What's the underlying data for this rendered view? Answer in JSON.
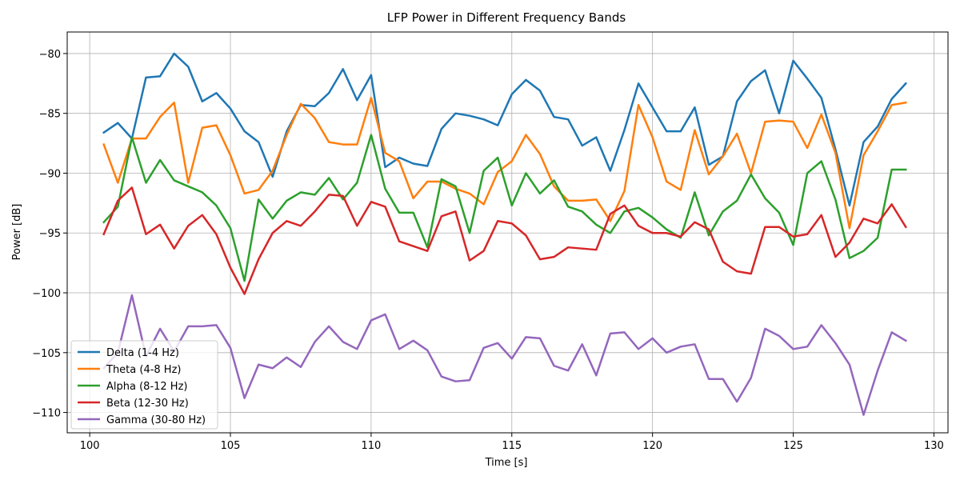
{
  "chart_data": {
    "type": "line",
    "title": "LFP Power in Different Frequency Bands",
    "xlabel": "Time [s]",
    "ylabel": "Power [dB]",
    "xlim": [
      99.2,
      130.5
    ],
    "ylim": [
      -111.7,
      -78.2
    ],
    "xticks": [
      100,
      105,
      110,
      115,
      120,
      125,
      130
    ],
    "yticks": [
      -110,
      -105,
      -100,
      -95,
      -90,
      -85,
      -80
    ],
    "xtick_labels": [
      "100",
      "105",
      "110",
      "115",
      "120",
      "125",
      "130"
    ],
    "ytick_labels": [
      "−110",
      "−105",
      "−100",
      "−95",
      "−90",
      "−85",
      "−80"
    ],
    "grid": true,
    "legend_position": "lower-left",
    "x": [
      100.5,
      101,
      101.5,
      102,
      102.5,
      103,
      103.5,
      104,
      104.5,
      105,
      105.5,
      106,
      106.5,
      107,
      107.5,
      108,
      108.5,
      109,
      109.5,
      110,
      110.5,
      111,
      111.5,
      112,
      112.5,
      113,
      113.5,
      114,
      114.5,
      115,
      115.5,
      116,
      116.5,
      117,
      117.5,
      118,
      118.5,
      119,
      119.5,
      120,
      120.5,
      121,
      121.5,
      122,
      122.5,
      123,
      123.5,
      124,
      124.5,
      125,
      125.5,
      126,
      126.5,
      127,
      127.5,
      128,
      128.5,
      129
    ],
    "series": [
      {
        "name": "Delta (1-4 Hz)",
        "color": "#1f77b4",
        "values": [
          -86.6,
          -85.8,
          -87.1,
          -82.0,
          -81.9,
          -80.0,
          -81.1,
          -84.0,
          -83.3,
          -84.6,
          -86.5,
          -87.4,
          -90.3,
          -86.5,
          -84.3,
          -84.4,
          -83.3,
          -81.3,
          -83.9,
          -81.8,
          -89.5,
          -88.7,
          -89.2,
          -89.4,
          -86.3,
          -85.0,
          -85.2,
          -85.5,
          -86.0,
          -83.4,
          -82.2,
          -83.1,
          -85.3,
          -85.5,
          -87.7,
          -87.0,
          -89.8,
          -86.4,
          -82.5,
          -84.5,
          -86.5,
          -86.5,
          -84.5,
          -89.3,
          -88.6,
          -84.0,
          -82.3,
          -81.4,
          -85.0,
          -80.6,
          -82.1,
          -83.7,
          -88.0,
          -92.7,
          -87.4,
          -86.1,
          -83.8,
          -82.5
        ]
      },
      {
        "name": "Theta (4-8 Hz)",
        "color": "#ff7f0e",
        "values": [
          -87.6,
          -90.8,
          -87.1,
          -87.1,
          -85.3,
          -84.1,
          -90.8,
          -86.2,
          -86.0,
          -88.5,
          -91.7,
          -91.4,
          -89.8,
          -86.8,
          -84.2,
          -85.4,
          -87.4,
          -87.6,
          -87.6,
          -83.7,
          -88.3,
          -89.0,
          -92.1,
          -90.7,
          -90.7,
          -91.3,
          -91.7,
          -92.6,
          -89.9,
          -89.0,
          -86.8,
          -88.4,
          -91.1,
          -92.3,
          -92.3,
          -92.2,
          -94.0,
          -91.5,
          -84.3,
          -87.0,
          -90.7,
          -91.4,
          -86.4,
          -90.1,
          -88.6,
          -86.7,
          -90.0,
          -85.7,
          -85.6,
          -85.7,
          -87.9,
          -85.1,
          -88.3,
          -94.6,
          -88.5,
          -86.5,
          -84.3,
          -84.1
        ]
      },
      {
        "name": "Alpha (8-12 Hz)",
        "color": "#2ca02c",
        "values": [
          -94.1,
          -92.8,
          -87.0,
          -90.8,
          -88.9,
          -90.6,
          -91.1,
          -91.6,
          -92.7,
          -94.6,
          -99.0,
          -92.2,
          -93.8,
          -92.3,
          -91.6,
          -91.8,
          -90.4,
          -92.2,
          -90.8,
          -86.8,
          -91.3,
          -93.3,
          -93.3,
          -96.2,
          -90.5,
          -91.1,
          -95.0,
          -89.8,
          -88.7,
          -92.7,
          -90.0,
          -91.7,
          -90.6,
          -92.8,
          -93.2,
          -94.3,
          -95.0,
          -93.2,
          -92.9,
          -93.7,
          -94.7,
          -95.4,
          -91.6,
          -95.2,
          -93.2,
          -92.3,
          -90.1,
          -92.1,
          -93.3,
          -96.0,
          -90.0,
          -89.0,
          -92.2,
          -97.1,
          -96.5,
          -95.4,
          -89.7,
          -89.7
        ]
      },
      {
        "name": "Beta (12-30 Hz)",
        "color": "#d62728",
        "values": [
          -95.1,
          -92.3,
          -91.2,
          -95.1,
          -94.3,
          -96.3,
          -94.4,
          -93.5,
          -95.1,
          -97.9,
          -100.1,
          -97.2,
          -95.0,
          -94.0,
          -94.4,
          -93.2,
          -91.8,
          -91.9,
          -94.4,
          -92.4,
          -92.8,
          -95.7,
          -96.1,
          -96.5,
          -93.6,
          -93.2,
          -97.3,
          -96.5,
          -94.0,
          -94.2,
          -95.2,
          -97.2,
          -97.0,
          -96.2,
          -96.3,
          -96.4,
          -93.4,
          -92.7,
          -94.4,
          -95.0,
          -95.0,
          -95.3,
          -94.1,
          -94.7,
          -97.4,
          -98.2,
          -98.4,
          -94.5,
          -94.5,
          -95.3,
          -95.1,
          -93.5,
          -97.0,
          -95.8,
          -93.8,
          -94.2,
          -92.6,
          -94.5
        ]
      },
      {
        "name": "Gamma (30-80 Hz)",
        "color": "#9467bd",
        "values": [
          -106.3,
          -105.0,
          -100.2,
          -105.3,
          -103.0,
          -104.9,
          -102.8,
          -102.8,
          -102.7,
          -104.6,
          -108.8,
          -106.0,
          -106.3,
          -105.4,
          -106.2,
          -104.1,
          -102.8,
          -104.1,
          -104.7,
          -102.3,
          -101.8,
          -104.7,
          -104.0,
          -104.8,
          -107.0,
          -107.4,
          -107.3,
          -104.6,
          -104.2,
          -105.5,
          -103.7,
          -103.8,
          -106.1,
          -106.5,
          -104.3,
          -106.9,
          -103.4,
          -103.3,
          -104.7,
          -103.8,
          -105.0,
          -104.5,
          -104.3,
          -107.2,
          -107.2,
          -109.1,
          -107.1,
          -103.0,
          -103.6,
          -104.7,
          -104.5,
          -102.7,
          -104.2,
          -106.0,
          -110.2,
          -106.5,
          -103.3,
          -104.0
        ]
      }
    ]
  }
}
